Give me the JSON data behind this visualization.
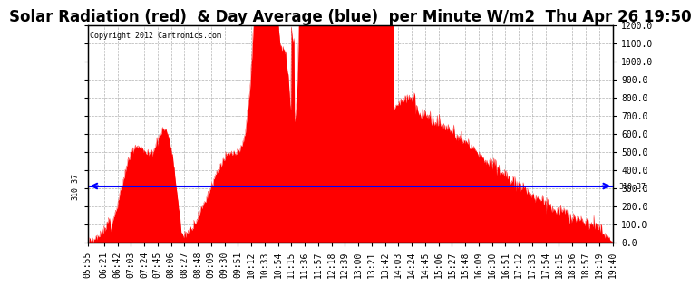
{
  "title": "Solar Radiation (red)  & Day Average (blue)  per Minute W/m2  Thu Apr 26 19:50",
  "copyright_text": "Copyright 2012 Cartronics.com",
  "day_average": 310.37,
  "y_min": 0.0,
  "y_max": 1200.0,
  "y_ticks": [
    0.0,
    100.0,
    200.0,
    300.0,
    400.0,
    500.0,
    600.0,
    700.0,
    800.0,
    900.0,
    1000.0,
    1100.0,
    1200.0
  ],
  "fill_color": "#ff0000",
  "line_color": "#ff0000",
  "avg_line_color": "#0000ff",
  "background_color": "#ffffff",
  "grid_color": "#aaaaaa",
  "title_fontsize": 12,
  "tick_fontsize": 7,
  "x_tick_labels": [
    "05:55",
    "06:21",
    "06:42",
    "07:03",
    "07:24",
    "07:45",
    "08:06",
    "08:27",
    "08:48",
    "09:09",
    "09:30",
    "09:51",
    "10:12",
    "10:33",
    "10:54",
    "11:15",
    "11:36",
    "11:57",
    "12:18",
    "12:39",
    "13:00",
    "13:21",
    "13:42",
    "14:03",
    "14:24",
    "14:45",
    "15:06",
    "15:27",
    "15:48",
    "16:09",
    "16:30",
    "16:51",
    "17:12",
    "17:33",
    "17:54",
    "18:15",
    "18:36",
    "18:57",
    "19:19",
    "19:40"
  ]
}
